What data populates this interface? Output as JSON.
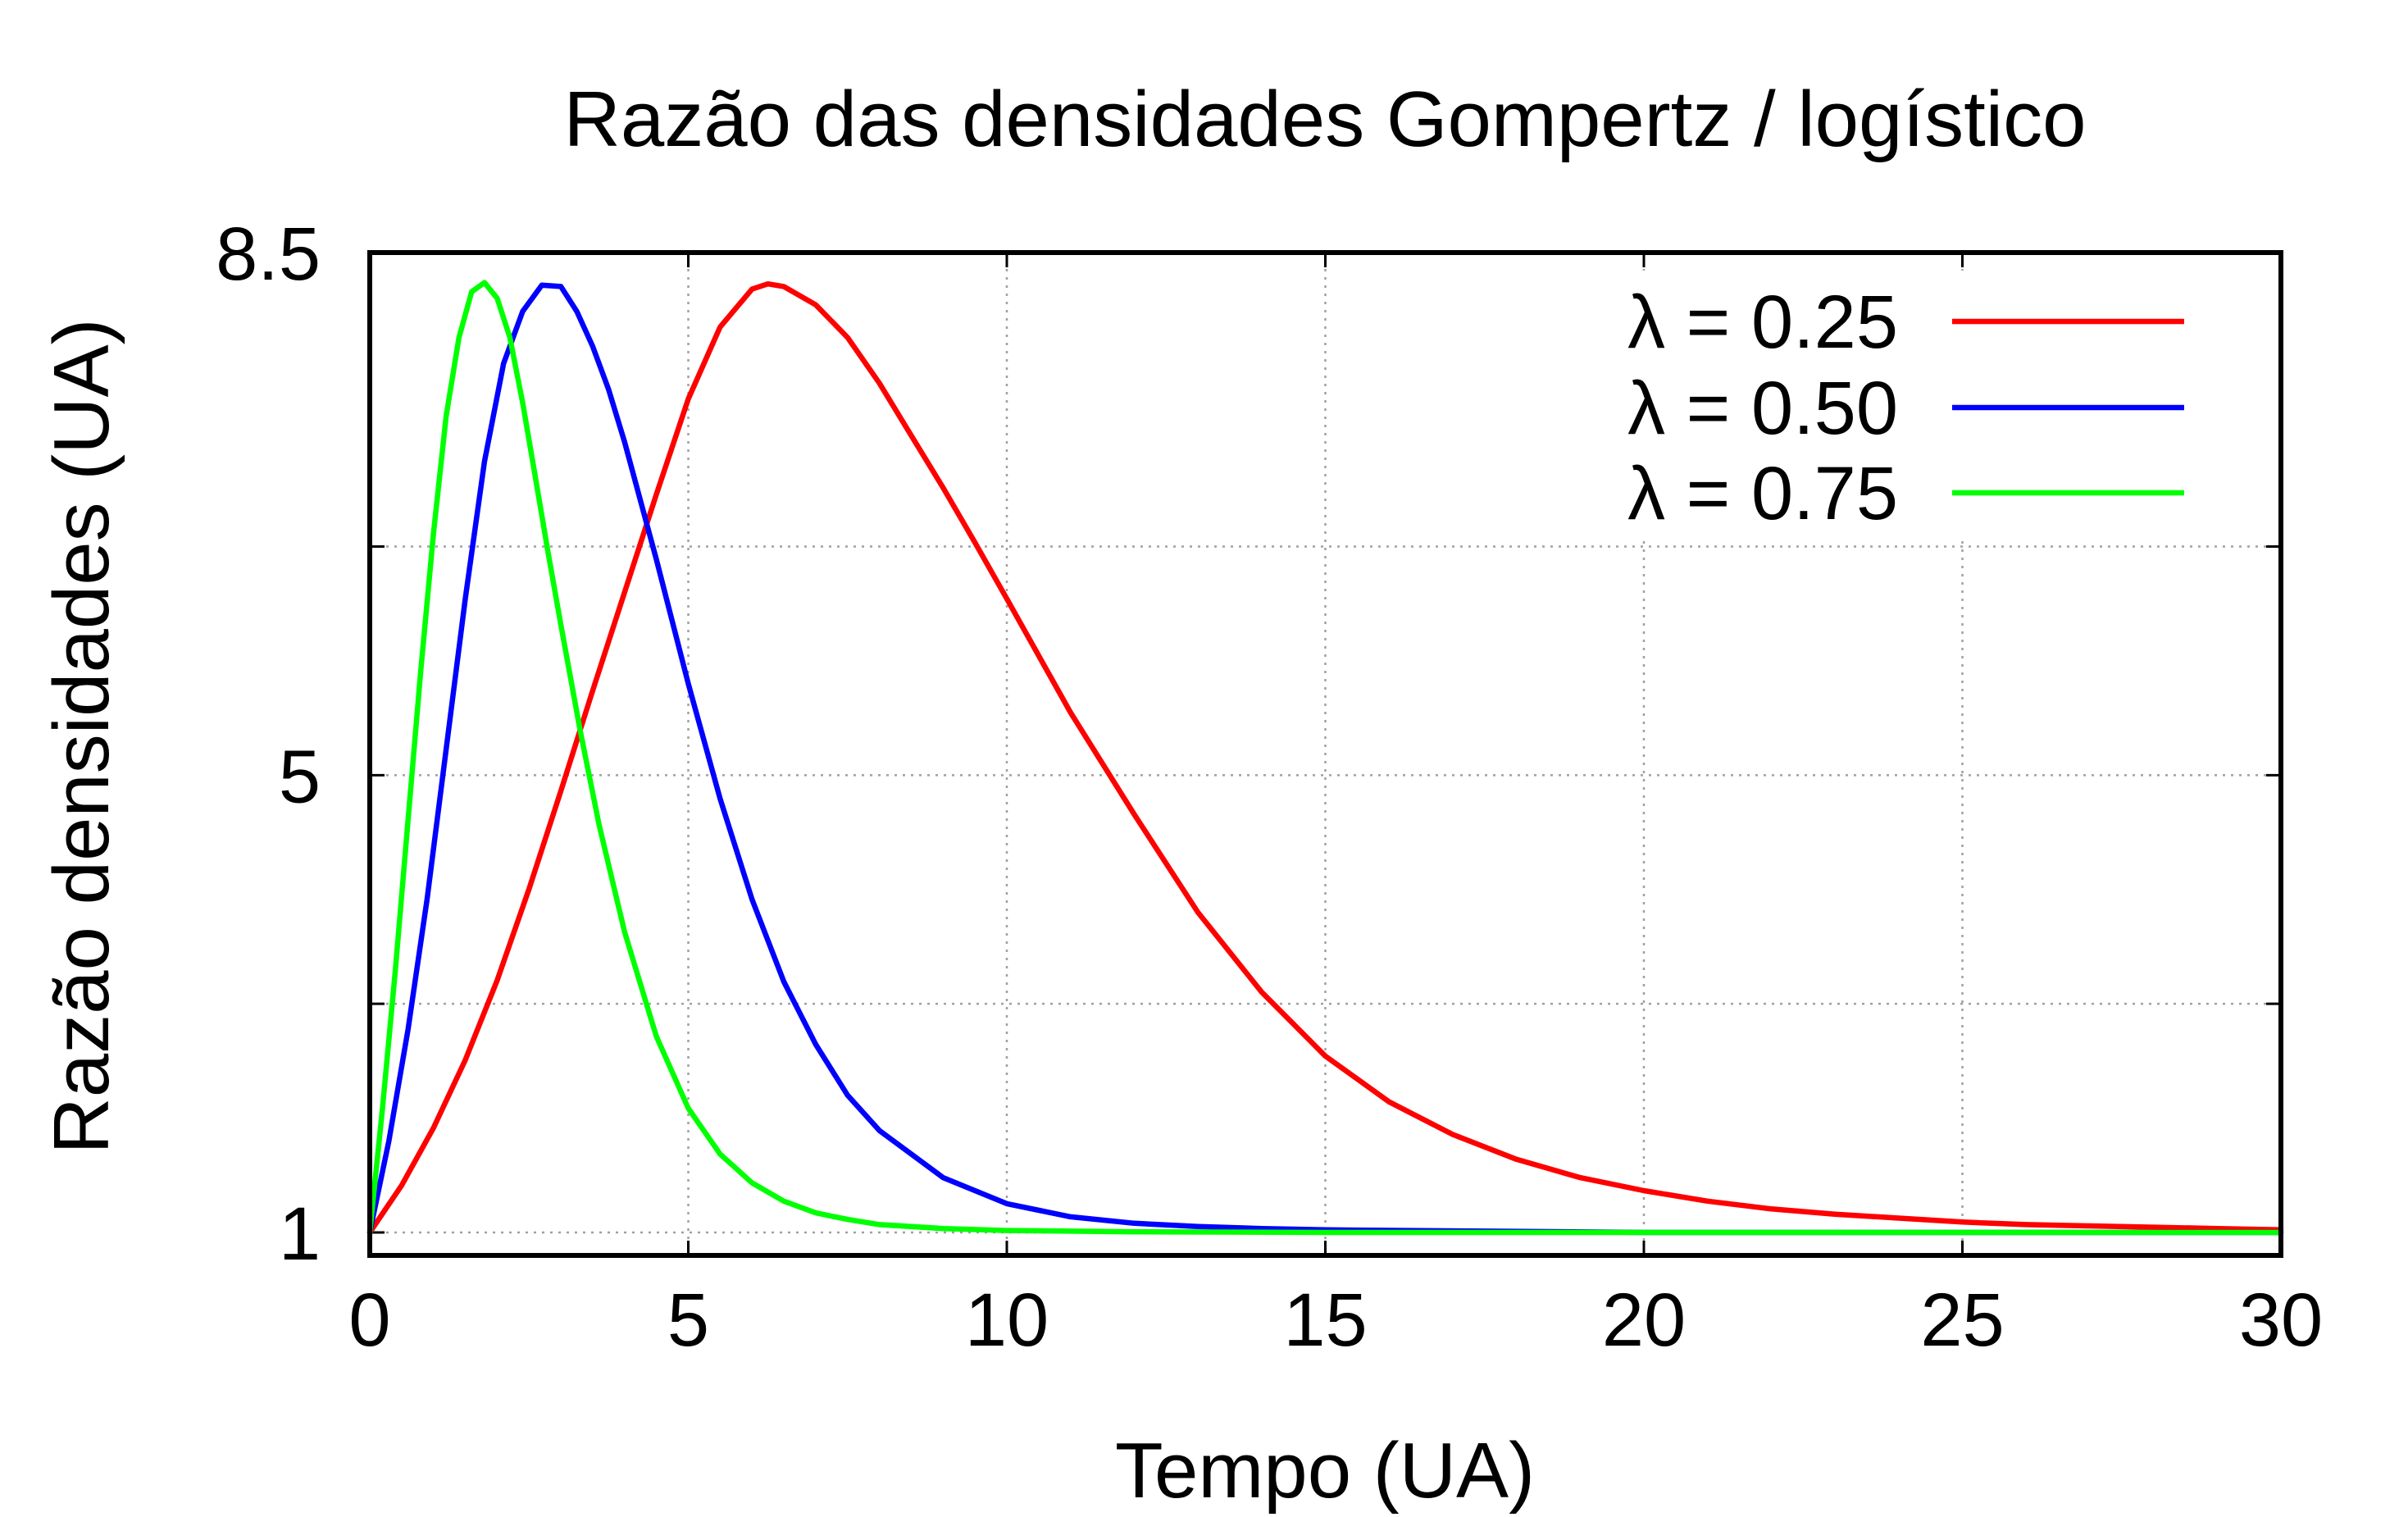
{
  "chart_data": {
    "type": "line",
    "title": "Razão das densidades Gompertz / logístico",
    "xlabel": "Tempo (UA)",
    "ylabel": "Razão densidades (UA)",
    "xlim": [
      0,
      30
    ],
    "ylim": [
      1,
      8.5
    ],
    "x_ticks": [
      0,
      5,
      10,
      15,
      20,
      25,
      30
    ],
    "x_tick_labels": [
      "0",
      "5",
      "10",
      "15",
      "20",
      "25",
      "30"
    ],
    "y_ticks": [
      1,
      2.75,
      4.5,
      6.25,
      8.5
    ],
    "y_tick_labels": [
      "1",
      "",
      "5",
      "",
      "8.5"
    ],
    "grid": true,
    "legend_position": "top-right",
    "series": [
      {
        "name": "λ = 0.25",
        "color": "#ff0000",
        "x": [
          0,
          0.5,
          1,
          1.5,
          2,
          2.5,
          3,
          3.5,
          4,
          4.5,
          5,
          5.5,
          6,
          6.25,
          6.5,
          7,
          7.5,
          8,
          8.5,
          9,
          9.5,
          10,
          11,
          12,
          13,
          14,
          15,
          16,
          17,
          18,
          19,
          20,
          21,
          22,
          23,
          24,
          25,
          26,
          27,
          28,
          29,
          30
        ],
        "y": [
          1.0,
          1.36,
          1.8,
          2.32,
          2.93,
          3.63,
          4.38,
          5.15,
          5.9,
          6.65,
          7.38,
          7.93,
          8.22,
          8.26,
          8.24,
          8.1,
          7.85,
          7.5,
          7.1,
          6.7,
          6.28,
          5.85,
          4.98,
          4.2,
          3.45,
          2.84,
          2.35,
          2.0,
          1.75,
          1.56,
          1.42,
          1.32,
          1.24,
          1.18,
          1.14,
          1.11,
          1.08,
          1.06,
          1.05,
          1.04,
          1.03,
          1.02
        ]
      },
      {
        "name": "λ = 0.50",
        "color": "#0000ff",
        "x": [
          0,
          0.3,
          0.6,
          0.9,
          1.2,
          1.5,
          1.8,
          2.1,
          2.4,
          2.7,
          3.0,
          3.25,
          3.5,
          3.75,
          4.0,
          4.5,
          5.0,
          5.5,
          6.0,
          6.5,
          7.0,
          7.5,
          8.0,
          9.0,
          10.0,
          11.0,
          12.0,
          13.0,
          14.0,
          15.0,
          17.5,
          20.0,
          25.0,
          30.0
        ],
        "y": [
          1.0,
          1.7,
          2.55,
          3.55,
          4.7,
          5.85,
          6.9,
          7.65,
          8.05,
          8.25,
          8.24,
          8.05,
          7.78,
          7.45,
          7.05,
          6.15,
          5.2,
          4.32,
          3.55,
          2.92,
          2.44,
          2.05,
          1.78,
          1.42,
          1.22,
          1.12,
          1.07,
          1.045,
          1.03,
          1.02,
          1.01,
          1.0,
          1.0,
          1.0
        ]
      },
      {
        "name": "λ = 0.75",
        "color": "#00ff00",
        "x": [
          0,
          0.2,
          0.4,
          0.6,
          0.8,
          1.0,
          1.2,
          1.4,
          1.6,
          1.8,
          2.0,
          2.2,
          2.4,
          2.6,
          2.8,
          3.0,
          3.3,
          3.6,
          4.0,
          4.5,
          5.0,
          5.5,
          6.0,
          6.5,
          7.0,
          7.5,
          8.0,
          9.0,
          10.0,
          12.0,
          15.0,
          20.0,
          30.0
        ],
        "y": [
          1.0,
          1.95,
          3.0,
          4.15,
          5.3,
          6.35,
          7.25,
          7.85,
          8.2,
          8.27,
          8.15,
          7.85,
          7.35,
          6.78,
          6.2,
          5.65,
          4.85,
          4.12,
          3.3,
          2.5,
          1.95,
          1.6,
          1.38,
          1.24,
          1.15,
          1.1,
          1.06,
          1.03,
          1.015,
          1.005,
          1.0,
          1.0,
          1.0
        ]
      }
    ]
  }
}
